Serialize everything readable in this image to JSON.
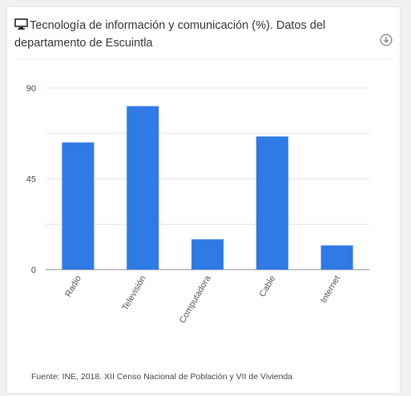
{
  "header": {
    "title": "Tecnología de información y comunicación (%). Datos del departamento de Escuintla",
    "icon": "monitor-icon",
    "download_icon": "download-icon"
  },
  "chart_data": {
    "type": "bar",
    "title": "Tecnología de información y comunicación (%). Datos del departamento de Escuintla",
    "categories": [
      "Radio",
      "Televisión",
      "Computadora",
      "Cable",
      "Internet"
    ],
    "values": [
      63,
      81,
      15,
      66,
      12
    ],
    "ylim": [
      0,
      90
    ],
    "yticks": [
      "0",
      "45",
      "90"
    ],
    "gridlines": [
      0,
      22.5,
      45,
      67.5,
      90
    ],
    "grid": true,
    "bar_color": "#2f7ae5",
    "xlabel": "",
    "ylabel": ""
  },
  "footer": {
    "source": "Fuente: INE, 2018. XII Censo Nacional de Población y VII de Vivienda"
  }
}
